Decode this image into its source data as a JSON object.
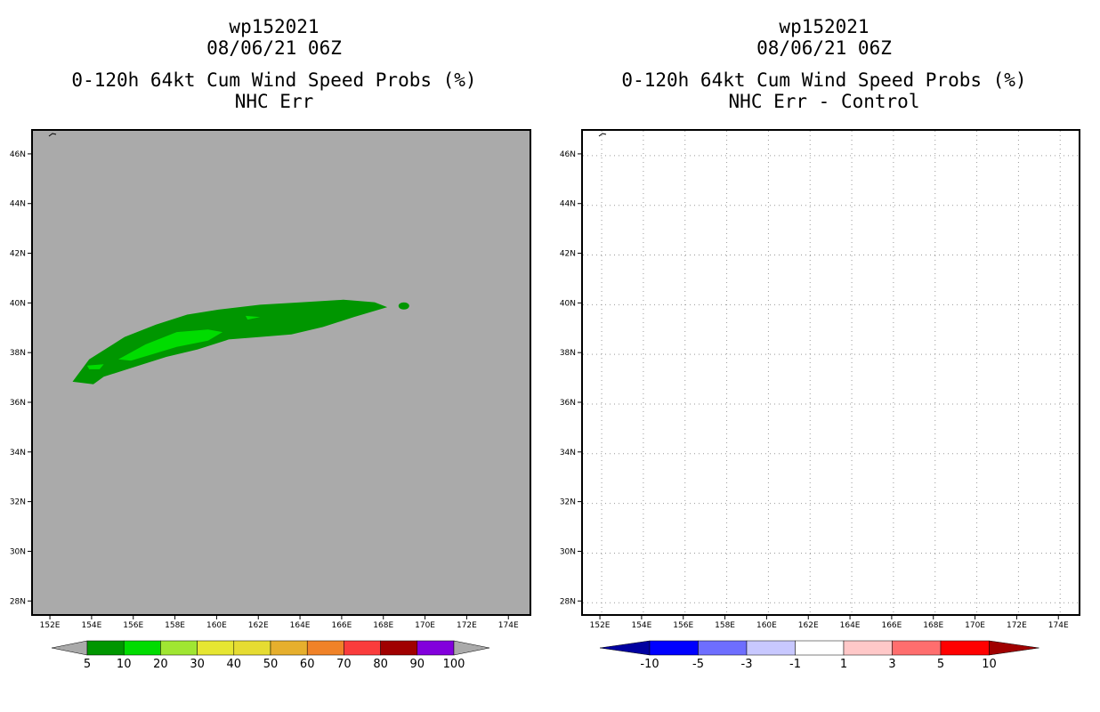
{
  "left_panel": {
    "title_lines": [
      "wp152021",
      "08/06/21 06Z",
      "0-120h 64kt Cum Wind Speed Probs (%)",
      "NHC Err"
    ]
  },
  "right_panel": {
    "title_lines": [
      "wp152021",
      "08/06/21 06Z",
      "0-120h 64kt Cum Wind Speed Probs (%)",
      "NHC Err - Control"
    ]
  },
  "chart_data": [
    {
      "type": "heatmap",
      "title": "0-120h 64kt Cum Wind Speed Probs (%) — NHC Err",
      "x_ticks": [
        "152E",
        "154E",
        "156E",
        "158E",
        "160E",
        "162E",
        "164E",
        "166E",
        "168E",
        "170E",
        "172E",
        "174E"
      ],
      "y_ticks": [
        "28N",
        "30N",
        "32N",
        "34N",
        "36N",
        "38N",
        "40N",
        "42N",
        "44N",
        "46N"
      ],
      "xlim": [
        151.1,
        175.1
      ],
      "ylim": [
        27.4,
        47.0
      ],
      "background_color": "#aaaaaa",
      "colorbar": {
        "labels": [
          "5",
          "10",
          "20",
          "30",
          "40",
          "50",
          "60",
          "70",
          "80",
          "90",
          "100"
        ],
        "colors": [
          "#009600",
          "#00dc00",
          "#a0e632",
          "#e6e632",
          "#e6dc32",
          "#e6af2d",
          "#f08228",
          "#fa3c3c",
          "#a00000",
          "#8200dc"
        ]
      },
      "swath": {
        "level_5_percent": [
          [
            153.0,
            36.9
          ],
          [
            153.8,
            37.8
          ],
          [
            155.5,
            38.7
          ],
          [
            157.0,
            39.2
          ],
          [
            158.5,
            39.6
          ],
          [
            160.0,
            39.8
          ],
          [
            162.0,
            40.0
          ],
          [
            164.0,
            40.1
          ],
          [
            166.0,
            40.2
          ],
          [
            167.5,
            40.1
          ],
          [
            168.1,
            39.9
          ],
          [
            166.5,
            39.5
          ],
          [
            165.0,
            39.1
          ],
          [
            163.5,
            38.8
          ],
          [
            162.0,
            38.7
          ],
          [
            160.5,
            38.6
          ],
          [
            159.0,
            38.2
          ],
          [
            157.5,
            37.9
          ],
          [
            156.0,
            37.5
          ],
          [
            154.5,
            37.1
          ],
          [
            154.0,
            36.8
          ]
        ],
        "level_5_island": {
          "center": [
            168.9,
            39.95
          ]
        },
        "level_10_percent": [
          [
            155.2,
            37.8
          ],
          [
            156.5,
            38.4
          ],
          [
            158.0,
            38.9
          ],
          [
            159.5,
            39.0
          ],
          [
            160.2,
            38.9
          ],
          [
            159.5,
            38.55
          ],
          [
            158.0,
            38.3
          ],
          [
            156.8,
            38.0
          ],
          [
            155.8,
            37.75
          ]
        ],
        "level_10_small": [
          [
            153.7,
            37.55
          ],
          [
            154.5,
            37.6
          ],
          [
            154.3,
            37.4
          ],
          [
            153.8,
            37.4
          ]
        ],
        "level_10_small2": [
          [
            161.3,
            39.55
          ],
          [
            162.0,
            39.5
          ],
          [
            161.4,
            39.4
          ]
        ]
      }
    },
    {
      "type": "heatmap",
      "title": "0-120h 64kt Cum Wind Speed Probs (%) — NHC Err - Control",
      "x_ticks": [
        "152E",
        "154E",
        "156E",
        "158E",
        "160E",
        "162E",
        "164E",
        "166E",
        "168E",
        "170E",
        "172E",
        "174E"
      ],
      "y_ticks": [
        "28N",
        "30N",
        "32N",
        "34N",
        "36N",
        "38N",
        "40N",
        "42N",
        "44N",
        "46N"
      ],
      "xlim": [
        151.1,
        175.1
      ],
      "ylim": [
        27.4,
        47.0
      ],
      "background_color": "#ffffff",
      "grid": true,
      "colorbar": {
        "labels": [
          "-10",
          "-5",
          "-3",
          "-1",
          "1",
          "3",
          "5",
          "10"
        ],
        "colors": [
          "#0000a0",
          "#0000ff",
          "#6e6eff",
          "#c8c8ff",
          "#ffffff",
          "#ffc8c8",
          "#ff6e6e",
          "#ff0000",
          "#a00000"
        ]
      }
    }
  ]
}
